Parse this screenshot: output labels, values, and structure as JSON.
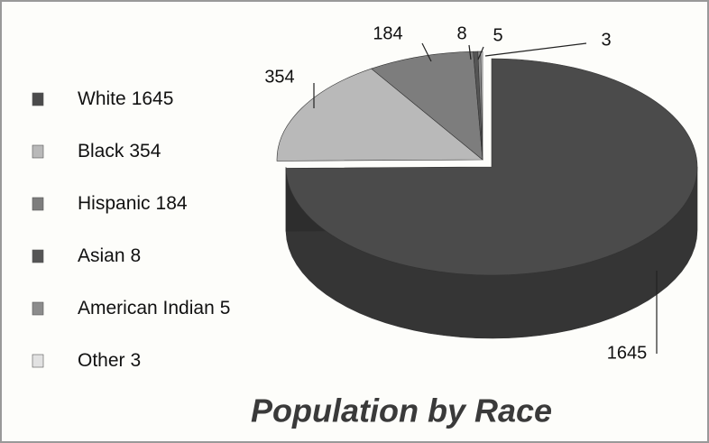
{
  "chart_data": {
    "type": "pie",
    "title": "Population by Race",
    "categories": [
      "White",
      "Black",
      "Hispanic",
      "Asian",
      "American Indian",
      "Other"
    ],
    "values": [
      1645,
      354,
      184,
      8,
      5,
      3
    ],
    "colors": [
      "#4b4b4b",
      "#b9b9b9",
      "#7d7d7d",
      "#555555",
      "#8c8c8c",
      "#e2e2e2"
    ],
    "legend": "left"
  }
}
